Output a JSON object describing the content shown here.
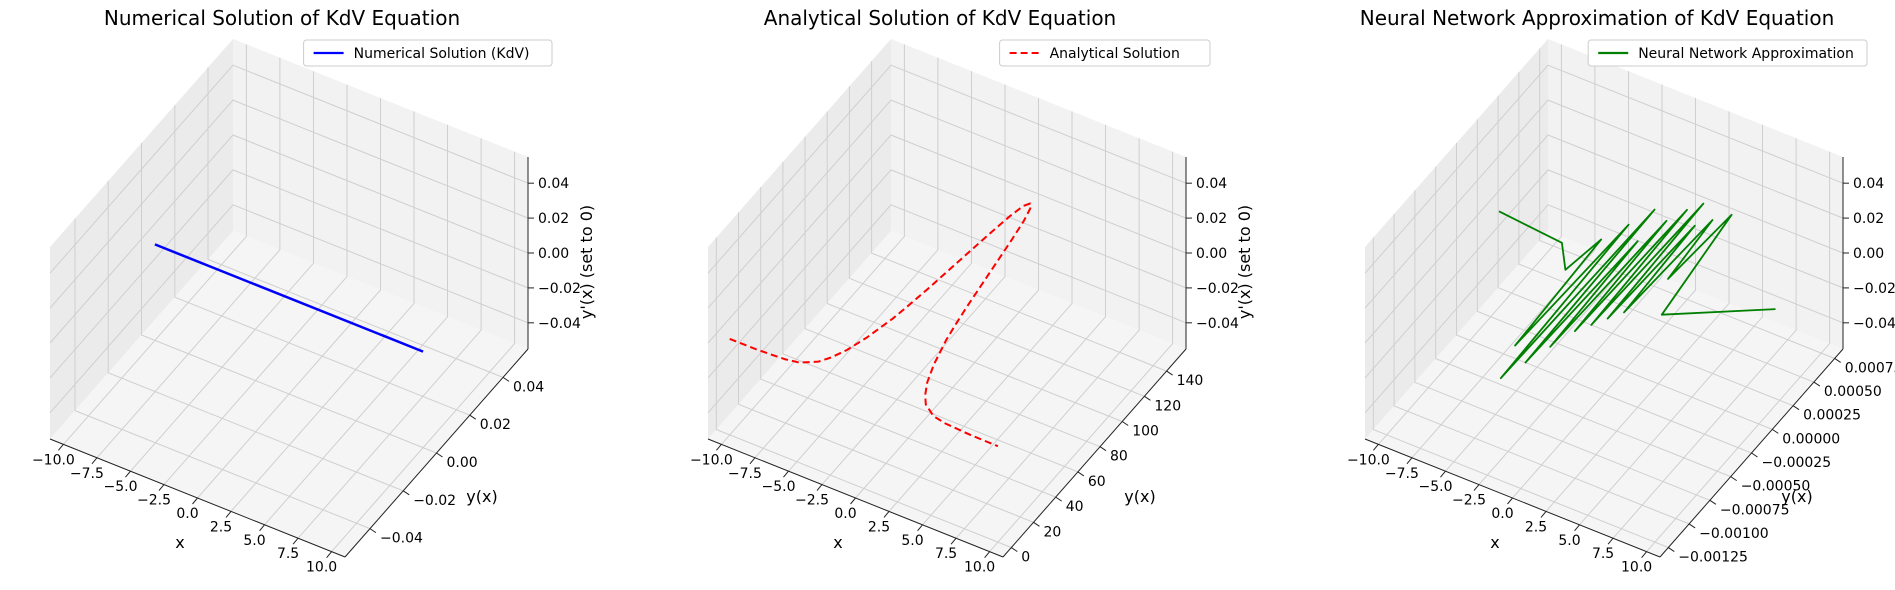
{
  "chart_data": [
    {
      "type": "line3d",
      "title": "Numerical Solution of KdV Equation",
      "xlabel": "x",
      "ylabel": "y(x)",
      "zlabel": "y'(x) (set to 0)",
      "xlim": [
        -11,
        11
      ],
      "ylim": [
        -0.055,
        0.055
      ],
      "zlim": [
        -0.055,
        0.055
      ],
      "xticks": [
        -10.0,
        -7.5,
        -5.0,
        -2.5,
        0.0,
        2.5,
        5.0,
        7.5,
        10.0
      ],
      "yticks": [
        -0.04,
        -0.02,
        0.0,
        0.02,
        0.04
      ],
      "zticks": [
        -0.04,
        -0.02,
        0.0,
        0.02,
        0.04
      ],
      "xtick_labels": [
        "−10.0",
        "−7.5",
        "−5.0",
        "−2.5",
        "0.0",
        "2.5",
        "5.0",
        "7.5",
        "10.0"
      ],
      "ytick_labels": [
        "−0.04",
        "−0.02",
        "0.00",
        "0.02",
        "0.04"
      ],
      "ztick_labels": [
        "−0.04",
        "−0.02",
        "0.00",
        "0.02",
        "0.04"
      ],
      "grid": true,
      "legend_position": "top-right",
      "series": [
        {
          "name": "Numerical Solution (KdV)",
          "color": "#0000ff",
          "style": "solid",
          "x": [
            -10,
            10
          ],
          "y": [
            0,
            0
          ],
          "z": [
            0,
            0
          ]
        }
      ]
    },
    {
      "type": "line3d",
      "title": "Analytical Solution of KdV Equation",
      "xlabel": "x",
      "ylabel": "y(x)",
      "zlabel": "y'(x) (set to 0)",
      "xlim": [
        -11,
        11
      ],
      "ylim": [
        -7.5,
        157.5
      ],
      "zlim": [
        -0.055,
        0.055
      ],
      "xticks": [
        -10.0,
        -7.5,
        -5.0,
        -2.5,
        0.0,
        2.5,
        5.0,
        7.5,
        10.0
      ],
      "yticks": [
        0,
        20,
        40,
        60,
        80,
        100,
        120,
        140
      ],
      "zticks": [
        -0.04,
        -0.02,
        0.0,
        0.02,
        0.04
      ],
      "xtick_labels": [
        "−10.0",
        "−7.5",
        "−5.0",
        "−2.5",
        "0.0",
        "2.5",
        "5.0",
        "7.5",
        "10.0"
      ],
      "ytick_labels": [
        "0",
        "20",
        "40",
        "60",
        "80",
        "100",
        "120",
        "140"
      ],
      "ztick_labels": [
        "−0.04",
        "−0.02",
        "0.00",
        "0.02",
        "0.04"
      ],
      "grid": true,
      "legend_position": "top-right",
      "series": [
        {
          "name": "Analytical Solution",
          "color": "#ff0000",
          "style": "dashed",
          "x": [
            -10,
            -8,
            -6,
            -5,
            -4,
            -3.5,
            -3,
            -2.5,
            -2,
            -1.75,
            -1.5,
            -1.25,
            -1,
            -0.75,
            -0.5,
            -0.25,
            0,
            0.25,
            0.5,
            0.75,
            1,
            1.25,
            1.5,
            1.75,
            2,
            2.5,
            3,
            3.5,
            4,
            5,
            6,
            8,
            10
          ],
          "y": [
            0,
            0.1,
            1,
            2.5,
            7.5,
            13,
            21,
            33,
            50,
            62,
            76,
            92,
            108,
            124,
            138,
            147,
            150,
            147,
            138,
            124,
            108,
            92,
            76,
            62,
            50,
            33,
            21,
            13,
            7.5,
            2.5,
            1,
            0.1,
            0
          ],
          "z": [
            0,
            0,
            0,
            0,
            0,
            0,
            0,
            0,
            0,
            0,
            0,
            0,
            0,
            0,
            0,
            0,
            0,
            0,
            0,
            0,
            0,
            0,
            0,
            0,
            0,
            0,
            0,
            0,
            0,
            0,
            0,
            0,
            0
          ]
        }
      ]
    },
    {
      "type": "line3d",
      "title": "Neural Network Approximation of KdV Equation",
      "xlabel": "x",
      "ylabel": "y(x)",
      "zlabel": "y'(x) (set to 0)",
      "xlim": [
        -11,
        11
      ],
      "ylim": [
        -0.00135,
        0.00085
      ],
      "zlim": [
        -0.055,
        0.055
      ],
      "xticks": [
        -10.0,
        -7.5,
        -5.0,
        -2.5,
        0.0,
        2.5,
        5.0,
        7.5,
        10.0
      ],
      "yticks": [
        -0.00125,
        -0.001,
        -0.00075,
        -0.0005,
        -0.00025,
        0.0,
        0.00025,
        0.0005,
        0.00075
      ],
      "zticks": [
        -0.04,
        -0.02,
        0.0,
        0.02,
        0.04
      ],
      "xtick_labels": [
        "−10.0",
        "−7.5",
        "−5.0",
        "−2.5",
        "0.0",
        "2.5",
        "5.0",
        "7.5",
        "10.0"
      ],
      "ytick_labels": [
        "−0.00125",
        "−0.00100",
        "−0.00075",
        "−0.00050",
        "−0.00025",
        "0.00000",
        "0.00025",
        "0.00050",
        "0.00075"
      ],
      "ztick_labels": [
        "−0.04",
        "−0.02",
        "0.00",
        "0.02",
        "0.04"
      ],
      "grid": true,
      "legend_position": "top-right",
      "series": [
        {
          "name": "Neural Network Approximation",
          "color": "#008000",
          "style": "solid",
          "x": [
            -10,
            -5,
            -3.5,
            -3,
            -2.6,
            -2.2,
            -1.8,
            -1.5,
            -1.2,
            -0.9,
            -0.6,
            -0.3,
            0,
            0.3,
            0.6,
            0.9,
            1.2,
            1.5,
            1.8,
            2.2,
            2.6,
            3,
            4,
            10
          ],
          "y": [
            0.0001,
            5e-05,
            -0.00015,
            0.0002,
            -0.0009,
            0.0004,
            -0.0012,
            0.0006,
            -0.001,
            0.0003,
            -0.0008,
            0.00055,
            -0.0006,
            0.0007,
            -0.0005,
            0.0008,
            -0.0004,
            0.0006,
            -0.0003,
            0.0007,
            0.0001,
            0.0008,
            -0.0002,
            0.0002
          ],
          "z": [
            0,
            0,
            0,
            0,
            0,
            0,
            0,
            0,
            0,
            0,
            0,
            0,
            0,
            0,
            0,
            0,
            0,
            0,
            0,
            0,
            0,
            0,
            0,
            0
          ]
        }
      ]
    }
  ]
}
